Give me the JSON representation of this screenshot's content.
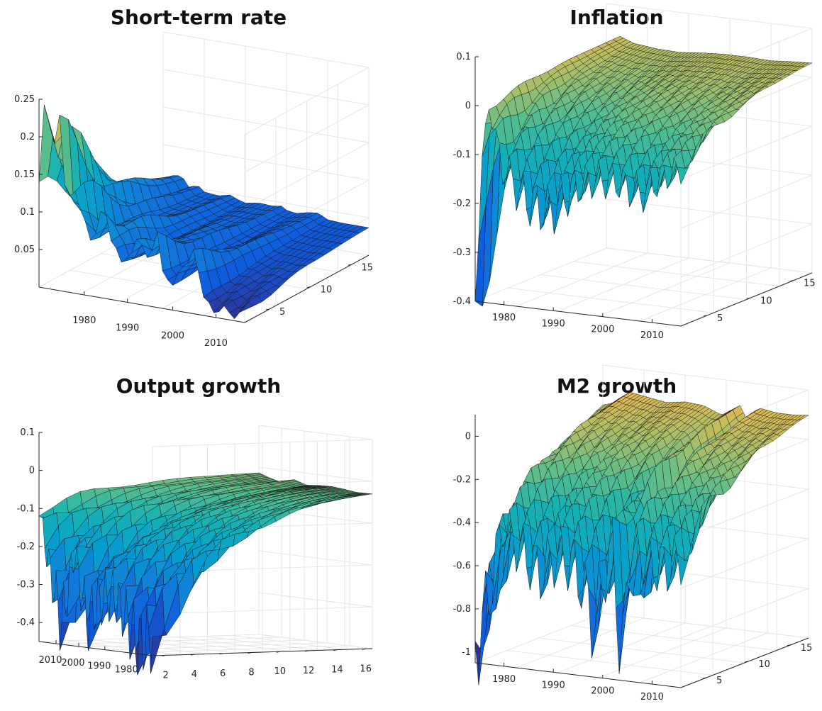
{
  "chart_data": [
    {
      "type": "surface3d",
      "title": "Short-term rate",
      "x_ticks": [
        "1980",
        "1990",
        "2000",
        "2010"
      ],
      "y_ticks": [
        "5",
        "10",
        "15"
      ],
      "z_ticks": [
        "0.05",
        "0.1",
        "0.15",
        "0.2",
        "0.25"
      ],
      "zlim": [
        0,
        0.25
      ],
      "series_profile": {
        "years": [
          1974,
          1975,
          1977,
          1979,
          1980,
          1981,
          1982,
          1983,
          1986,
          1989,
          1990,
          1992,
          1995,
          1998,
          2000,
          2001,
          2003,
          2006,
          2008,
          2010,
          2013,
          2016,
          2019
        ],
        "values_at_horizon_1": [
          0.14,
          0.2,
          0.25,
          0.2,
          0.08,
          0.17,
          0.15,
          0.1,
          0.08,
          0.12,
          0.08,
          0.05,
          0.08,
          0.07,
          0.09,
          0.05,
          0.03,
          0.07,
          0.08,
          0.02,
          0.01,
          0.01,
          0.01
        ],
        "long_run_value": 0.04
      },
      "colormap": "parula"
    },
    {
      "type": "surface3d",
      "title": "Inflation",
      "x_ticks": [
        "1980",
        "1990",
        "2000",
        "2010"
      ],
      "y_ticks": [
        "5",
        "10",
        "15"
      ],
      "z_ticks": [
        "-0.4",
        "-0.3",
        "-0.2",
        "-0.1",
        "0",
        "0.1"
      ],
      "zlim": [
        -0.4,
        0.1
      ],
      "series_profile": {
        "years": [
          1974,
          1975,
          1977,
          1980,
          1985,
          1990,
          1995,
          2000,
          2005,
          2010,
          2015,
          2019
        ],
        "values_at_horizon_1": [
          -0.4,
          -0.15,
          0.0,
          -0.12,
          -0.18,
          -0.2,
          -0.15,
          -0.12,
          -0.12,
          -0.14,
          -0.1,
          -0.08
        ],
        "long_run_value": 0.04
      },
      "colormap": "parula"
    },
    {
      "type": "surface3d",
      "title": "Output growth",
      "x_ticks": [
        "2010",
        "2000",
        "1990",
        "1980"
      ],
      "y_ticks": [
        "2",
        "4",
        "6",
        "8",
        "10",
        "12",
        "14",
        "16"
      ],
      "z_ticks": [
        "-0.4",
        "-0.3",
        "-0.2",
        "-0.1",
        "0",
        "0.1"
      ],
      "zlim": [
        -0.45,
        0.1
      ],
      "series_profile": {
        "years": [
          1974,
          1980,
          1985,
          1990,
          1995,
          2000,
          2005,
          2010,
          2015,
          2019
        ],
        "values_at_horizon_1": [
          -0.4,
          -0.42,
          -0.35,
          -0.3,
          -0.32,
          -0.38,
          -0.2,
          -0.4,
          -0.25,
          -0.1
        ],
        "long_run_value": -0.02
      },
      "colormap": "parula"
    },
    {
      "type": "surface3d",
      "title": "M2 growth",
      "x_ticks": [
        "1980",
        "1990",
        "2000",
        "2010"
      ],
      "y_ticks": [
        "5",
        "10",
        "15"
      ],
      "z_ticks": [
        "-1",
        "-0.8",
        "-0.6",
        "-0.4",
        "-0.2",
        "0"
      ],
      "zlim": [
        -1.05,
        0.1
      ],
      "series_profile": {
        "years": [
          1974,
          1976,
          1978,
          1980,
          1984,
          1988,
          1992,
          1996,
          2000,
          2004,
          2006,
          2008,
          2012,
          2016,
          2019
        ],
        "values_at_horizon_1": [
          -0.95,
          -0.85,
          -0.6,
          -0.4,
          -0.5,
          -0.6,
          -0.5,
          -0.55,
          -0.8,
          -0.4,
          -1.0,
          -0.4,
          -0.5,
          -0.5,
          -0.45
        ],
        "long_run_value": 0.05
      },
      "colormap": "parula"
    }
  ]
}
